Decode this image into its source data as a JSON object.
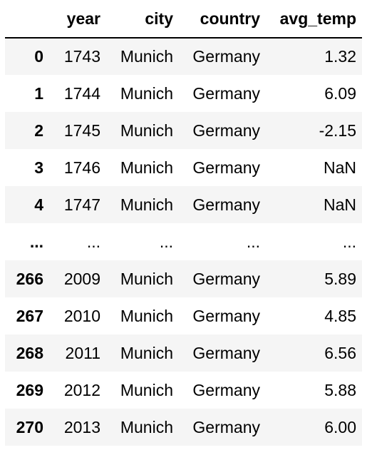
{
  "table": {
    "columns": [
      "",
      "year",
      "city",
      "country",
      "avg_temp"
    ],
    "rows": [
      {
        "index": "0",
        "year": "1743",
        "city": "Munich",
        "country": "Germany",
        "avg_temp": "1.32"
      },
      {
        "index": "1",
        "year": "1744",
        "city": "Munich",
        "country": "Germany",
        "avg_temp": "6.09"
      },
      {
        "index": "2",
        "year": "1745",
        "city": "Munich",
        "country": "Germany",
        "avg_temp": "-2.15"
      },
      {
        "index": "3",
        "year": "1746",
        "city": "Munich",
        "country": "Germany",
        "avg_temp": "NaN"
      },
      {
        "index": "4",
        "year": "1747",
        "city": "Munich",
        "country": "Germany",
        "avg_temp": "NaN"
      },
      {
        "index": "...",
        "year": "...",
        "city": "...",
        "country": "...",
        "avg_temp": "..."
      },
      {
        "index": "266",
        "year": "2009",
        "city": "Munich",
        "country": "Germany",
        "avg_temp": "5.89"
      },
      {
        "index": "267",
        "year": "2010",
        "city": "Munich",
        "country": "Germany",
        "avg_temp": "4.85"
      },
      {
        "index": "268",
        "year": "2011",
        "city": "Munich",
        "country": "Germany",
        "avg_temp": "6.56"
      },
      {
        "index": "269",
        "year": "2012",
        "city": "Munich",
        "country": "Germany",
        "avg_temp": "5.88"
      },
      {
        "index": "270",
        "year": "2013",
        "city": "Munich",
        "country": "Germany",
        "avg_temp": "6.00"
      }
    ]
  }
}
